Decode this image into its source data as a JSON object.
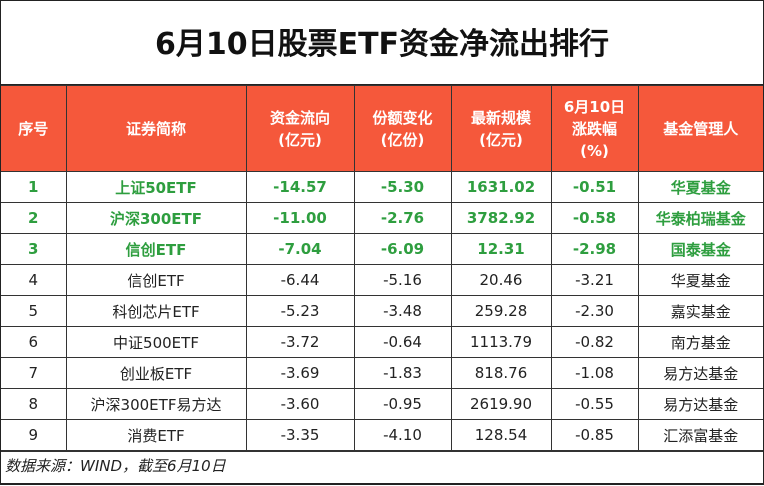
{
  "title": "6月10日股票ETF资金净流出排行",
  "colors": {
    "header_bg": "#f5583b",
    "highlight_text": "#2e9e3f"
  },
  "columns": [
    [
      "序号"
    ],
    [
      "证券简称"
    ],
    [
      "资金流向",
      "(亿元)"
    ],
    [
      "份额变化",
      "(亿份)"
    ],
    [
      "最新规模",
      "(亿元)"
    ],
    [
      "6月10日",
      "涨跌幅",
      "(%)"
    ],
    [
      "基金管理人"
    ]
  ],
  "rows": [
    {
      "highlight": true,
      "cells": [
        "1",
        "上证50ETF",
        "-14.57",
        "-5.30",
        "1631.02",
        "-0.51",
        "华夏基金"
      ]
    },
    {
      "highlight": true,
      "cells": [
        "2",
        "沪深300ETF",
        "-11.00",
        "-2.76",
        "3782.92",
        "-0.58",
        "华泰柏瑞基金"
      ]
    },
    {
      "highlight": true,
      "cells": [
        "3",
        "信创ETF",
        "-7.04",
        "-6.09",
        "12.31",
        "-2.98",
        "国泰基金"
      ]
    },
    {
      "highlight": false,
      "cells": [
        "4",
        "信创ETF",
        "-6.44",
        "-5.16",
        "20.46",
        "-3.21",
        "华夏基金"
      ]
    },
    {
      "highlight": false,
      "cells": [
        "5",
        "科创芯片ETF",
        "-5.23",
        "-3.48",
        "259.28",
        "-2.30",
        "嘉实基金"
      ]
    },
    {
      "highlight": false,
      "cells": [
        "6",
        "中证500ETF",
        "-3.72",
        "-0.64",
        "1113.79",
        "-0.82",
        "南方基金"
      ]
    },
    {
      "highlight": false,
      "cells": [
        "7",
        "创业板ETF",
        "-3.69",
        "-1.83",
        "818.76",
        "-1.08",
        "易方达基金"
      ]
    },
    {
      "highlight": false,
      "cells": [
        "8",
        "沪深300ETF易方达",
        "-3.60",
        "-0.95",
        "2619.90",
        "-0.55",
        "易方达基金"
      ]
    },
    {
      "highlight": false,
      "cells": [
        "9",
        "消费ETF",
        "-3.35",
        "-4.10",
        "128.54",
        "-0.85",
        "汇添富基金"
      ]
    }
  ],
  "footer": "数据来源：WIND，截至6月10日"
}
